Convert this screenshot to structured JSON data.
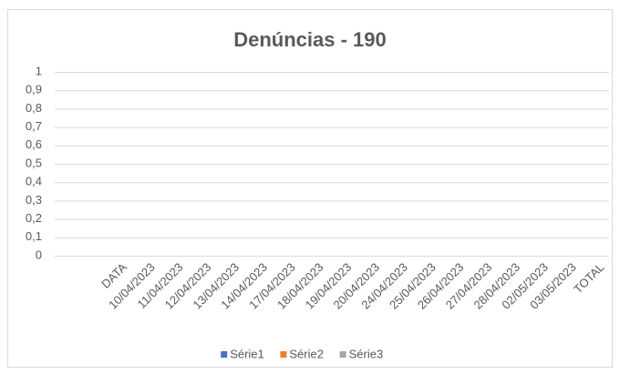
{
  "chart_data": {
    "type": "bar",
    "title": "Denúncias - 190",
    "categories": [
      "DATA",
      "10/04/2023",
      "11/04/2023",
      "12/04/2023",
      "13/04/2023",
      "14/04/2023",
      "17/04/2023",
      "18/04/2023",
      "19/04/2023",
      "20/04/2023",
      "24/04/2023",
      "25/04/2023",
      "26/04/2023",
      "27/04/2023",
      "28/04/2023",
      "02/05/2023",
      "03/05/2023",
      "TOTAL"
    ],
    "series": [
      {
        "name": "Série1",
        "color": "#4472c4",
        "values": [
          null,
          null,
          null,
          null,
          null,
          null,
          null,
          null,
          null,
          null,
          null,
          null,
          null,
          null,
          null,
          null,
          null,
          null
        ]
      },
      {
        "name": "Série2",
        "color": "#ed7d31",
        "values": [
          null,
          null,
          null,
          null,
          null,
          null,
          null,
          null,
          null,
          null,
          null,
          null,
          null,
          null,
          null,
          null,
          null,
          null
        ]
      },
      {
        "name": "Série3",
        "color": "#a5a5a5",
        "values": [
          null,
          null,
          null,
          null,
          null,
          null,
          null,
          null,
          null,
          null,
          null,
          null,
          null,
          null,
          null,
          null,
          null,
          null
        ]
      }
    ],
    "ylim": [
      0,
      1
    ],
    "yticks": [
      0,
      {
        "value": 0.1,
        "label": "0,1"
      },
      {
        "value": 0.2,
        "label": "0,2"
      },
      {
        "value": 0.3,
        "label": "0,3"
      },
      {
        "value": 0.4,
        "label": "0,4"
      },
      {
        "value": 0.5,
        "label": "0,5"
      },
      {
        "value": 0.6,
        "label": "0,6"
      },
      {
        "value": 0.7,
        "label": "0,7"
      },
      {
        "value": 0.8,
        "label": "0,8"
      },
      {
        "value": 0.9,
        "label": "0,9"
      },
      1
    ],
    "grid": true,
    "legend": "bottom"
  }
}
